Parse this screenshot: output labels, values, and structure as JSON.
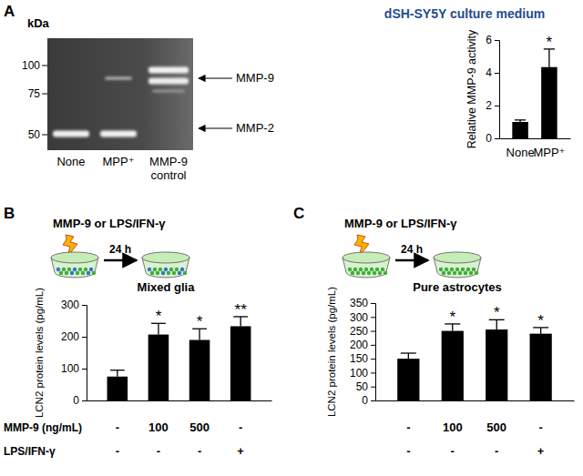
{
  "chart_data": [
    {
      "type": "bar",
      "panel_label": "A",
      "title": "dSH-SY5Y culture medium",
      "y_label": "Relative MMP-9 activity",
      "categories": [
        "None",
        "MPP⁺"
      ],
      "values": [
        1.0,
        4.35
      ],
      "errors": [
        0.12,
        1.1
      ],
      "significance": [
        null,
        "*"
      ],
      "color": "#000000",
      "ylim": [
        0,
        6
      ],
      "yticks": [
        0,
        2,
        4,
        6
      ],
      "gel": {
        "unit_label": "kDa",
        "markers": [
          100,
          75,
          50
        ],
        "lanes": [
          "None",
          "MPP⁺",
          "MMP-9 control"
        ],
        "band_labels": [
          "MMP-9",
          "MMP-2"
        ]
      }
    },
    {
      "type": "bar",
      "panel_label": "B",
      "title": "MMP-9 or LPS/IFN-γ",
      "schematic_label": "24 h",
      "subtitle": "Mixed glia",
      "y_label": "LCN2 protein levels (pg/mL)",
      "categories": [
        null,
        null,
        null,
        null
      ],
      "values": [
        75,
        207,
        190,
        233
      ],
      "errors": [
        20,
        35,
        35,
        30
      ],
      "significance": [
        null,
        "*",
        "*",
        "**"
      ],
      "color": "#000000",
      "ylim": [
        0,
        300
      ],
      "yticks": [
        0,
        100,
        200,
        300
      ],
      "treatment_rows": [
        {
          "label": "MMP-9 (ng/mL)",
          "values": [
            "-",
            "100",
            "500",
            "-"
          ]
        },
        {
          "label": "LPS/IFN-γ",
          "values": [
            "-",
            "-",
            "-",
            "+"
          ]
        }
      ]
    },
    {
      "type": "bar",
      "panel_label": "C",
      "title": "MMP-9 or LPS/IFN-γ",
      "schematic_label": "24 h",
      "subtitle": "Pure astrocytes",
      "y_label": "LCN2 protein levels (pg/mL)",
      "categories": [
        null,
        null,
        null,
        null
      ],
      "values": [
        150,
        250,
        255,
        240
      ],
      "errors": [
        20,
        25,
        35,
        22
      ],
      "significance": [
        null,
        "*",
        "*",
        "*"
      ],
      "color": "#000000",
      "ylim": [
        0,
        350
      ],
      "yticks": [
        0,
        50,
        100,
        150,
        200,
        250,
        300,
        350
      ],
      "treatment_rows": [
        {
          "values": [
            "-",
            "100",
            "500",
            "-"
          ]
        },
        {
          "values": [
            "-",
            "-",
            "-",
            "+"
          ]
        }
      ]
    }
  ]
}
